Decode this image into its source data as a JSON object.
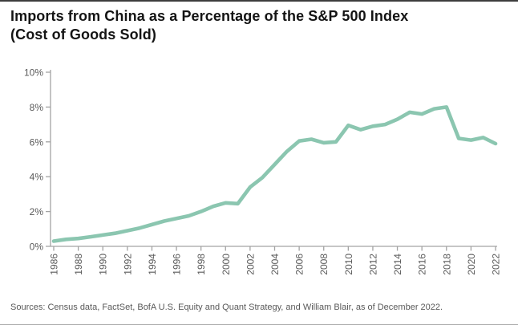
{
  "header": {
    "title_line1": "Imports from China as a Percentage of the S&P 500 Index",
    "title_line2": "(Cost of Goods Sold)"
  },
  "chart_data": {
    "type": "line",
    "series_name": "Imports from China as % of S&P 500 COGS",
    "x": [
      1986,
      1987,
      1988,
      1989,
      1990,
      1991,
      1992,
      1993,
      1994,
      1995,
      1996,
      1997,
      1998,
      1999,
      2000,
      2001,
      2002,
      2003,
      2004,
      2005,
      2006,
      2007,
      2008,
      2009,
      2010,
      2011,
      2012,
      2013,
      2014,
      2015,
      2016,
      2017,
      2018,
      2019,
      2020,
      2021,
      2022
    ],
    "values": [
      0.3,
      0.4,
      0.45,
      0.55,
      0.65,
      0.75,
      0.9,
      1.05,
      1.25,
      1.45,
      1.6,
      1.75,
      2.0,
      2.3,
      2.5,
      2.45,
      3.4,
      3.95,
      4.7,
      5.45,
      6.05,
      6.15,
      5.95,
      6.0,
      6.95,
      6.7,
      6.9,
      7.0,
      7.3,
      7.7,
      7.6,
      7.9,
      8.0,
      6.2,
      6.1,
      6.25,
      5.9
    ],
    "ylim": [
      0,
      10
    ],
    "yticks": [
      {
        "value": 0,
        "label": "0%"
      },
      {
        "value": 2,
        "label": "2%"
      },
      {
        "value": 4,
        "label": "4%"
      },
      {
        "value": 6,
        "label": "6%"
      },
      {
        "value": 8,
        "label": "8%"
      },
      {
        "value": 10,
        "label": "10%"
      }
    ],
    "xticks": [
      {
        "value": 1986,
        "label": "1986"
      },
      {
        "value": 1988,
        "label": "1988"
      },
      {
        "value": 1990,
        "label": "1990"
      },
      {
        "value": 1992,
        "label": "1992"
      },
      {
        "value": 1994,
        "label": "1994"
      },
      {
        "value": 1996,
        "label": "1996"
      },
      {
        "value": 1998,
        "label": "1998"
      },
      {
        "value": 2000,
        "label": "2000"
      },
      {
        "value": 2002,
        "label": "2002"
      },
      {
        "value": 2004,
        "label": "2004"
      },
      {
        "value": 2006,
        "label": "2006"
      },
      {
        "value": 2008,
        "label": "2008"
      },
      {
        "value": 2010,
        "label": "2010"
      },
      {
        "value": 2012,
        "label": "2012"
      },
      {
        "value": 2014,
        "label": "2014"
      },
      {
        "value": 2016,
        "label": "2016"
      },
      {
        "value": 2018,
        "label": "2018"
      },
      {
        "value": 2020,
        "label": "2020"
      },
      {
        "value": 2022,
        "label": "2022"
      }
    ],
    "grid": false,
    "legend": "none",
    "line_color": "#8BC6B0",
    "axis_color": "#A3A3A3",
    "tick_label_color": "#595959"
  },
  "footer": {
    "sources": "Sources: Census data, FactSet, BofA U.S. Equity and Quant Strategy, and William Blair, as of December 2022."
  }
}
